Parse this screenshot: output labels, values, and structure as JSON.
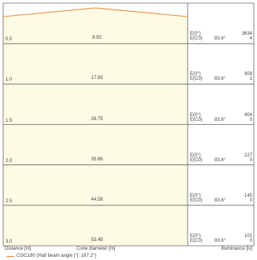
{
  "chart_data": {
    "type": "table",
    "columns": {
      "distance": "Distance [m]",
      "diameter": "Cone diameter [m]",
      "illuminance": "Illuminance [lx]"
    },
    "rows": [
      {
        "distance": "0.5",
        "diameter": "8.92",
        "label_e0": "E(0°)",
        "label_ec0": "E(C0)",
        "angle": "83.6°",
        "e0": "3634",
        "ec0": "4"
      },
      {
        "distance": "1.0",
        "diameter": "17.83",
        "label_e0": "E(0°)",
        "label_ec0": "E(C0)",
        "angle": "83.6°",
        "e0": "909",
        "ec0": "1"
      },
      {
        "distance": "1.5",
        "diameter": "26.75",
        "label_e0": "E(0°)",
        "label_ec0": "E(C0)",
        "angle": "83.6°",
        "e0": "404",
        "ec0": "0"
      },
      {
        "distance": "2.0",
        "diameter": "35.66",
        "label_e0": "E(0°)",
        "label_ec0": "E(C0)",
        "angle": "83.6°",
        "e0": "227",
        "ec0": "0"
      },
      {
        "distance": "2.5",
        "diameter": "44.58",
        "label_e0": "E(0°)",
        "label_ec0": "E(C0)",
        "angle": "83.6°",
        "e0": "145",
        "ec0": "0"
      },
      {
        "distance": "3.0",
        "diameter": "53.49",
        "label_e0": "E(0°)",
        "label_ec0": "E(C0)",
        "angle": "83.6°",
        "e0": "101",
        "ec0": "0"
      }
    ],
    "legend": {
      "text": "C0/C180 (Half beam angle [°]: 167.2°)",
      "color": "#e8893a"
    },
    "half_beam_angle_deg": 167.2,
    "fill_color": "#fdfbe3",
    "grid_color": "#666666"
  }
}
